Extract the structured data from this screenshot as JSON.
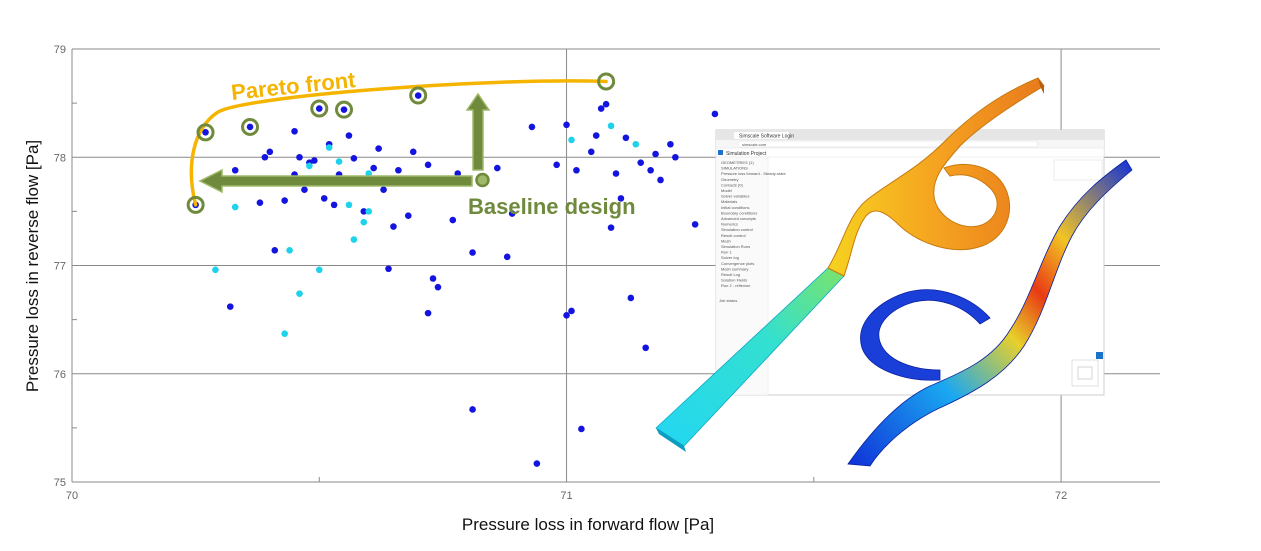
{
  "chart_data": {
    "type": "scatter",
    "xlabel": "Pressure loss in forward flow [Pa]",
    "ylabel": "Pressure loss in reverse flow [Pa]",
    "xlim": [
      70,
      72.2
    ],
    "ylim": [
      75,
      79
    ],
    "x_ticks": [
      "70",
      "71",
      "72"
    ],
    "y_ticks": [
      "75",
      "76",
      "77",
      "78",
      "79"
    ],
    "grid": true,
    "colors": {
      "primary": "#1414e0",
      "secondary": "#1ed2ec",
      "pareto": "#f4b400",
      "baseline": "#6f8a3c"
    },
    "series": [
      {
        "color": "primary",
        "points": [
          [
            70.27,
            78.23
          ],
          [
            70.36,
            78.28
          ],
          [
            70.25,
            77.56
          ],
          [
            70.33,
            77.88
          ],
          [
            70.32,
            76.62
          ],
          [
            70.39,
            78.0
          ],
          [
            70.4,
            78.05
          ],
          [
            70.41,
            77.14
          ],
          [
            70.38,
            77.58
          ],
          [
            70.43,
            77.6
          ],
          [
            70.45,
            78.24
          ],
          [
            70.45,
            77.84
          ],
          [
            70.46,
            78.0
          ],
          [
            70.48,
            77.95
          ],
          [
            70.47,
            77.7
          ],
          [
            70.49,
            77.97
          ],
          [
            70.5,
            78.45
          ],
          [
            70.52,
            78.12
          ],
          [
            70.51,
            77.62
          ],
          [
            70.53,
            77.56
          ],
          [
            70.54,
            77.84
          ],
          [
            70.55,
            78.44
          ],
          [
            70.56,
            78.2
          ],
          [
            70.57,
            77.99
          ],
          [
            70.58,
            77.78
          ],
          [
            70.59,
            77.5
          ],
          [
            70.61,
            77.9
          ],
          [
            70.62,
            78.08
          ],
          [
            70.63,
            77.7
          ],
          [
            70.64,
            76.97
          ],
          [
            70.65,
            77.36
          ],
          [
            70.66,
            77.88
          ],
          [
            70.68,
            77.46
          ],
          [
            70.69,
            78.05
          ],
          [
            70.7,
            78.57
          ],
          [
            70.72,
            77.93
          ],
          [
            70.73,
            77.76
          ],
          [
            70.73,
            76.88
          ],
          [
            70.74,
            76.8
          ],
          [
            70.72,
            76.56
          ],
          [
            70.77,
            77.42
          ],
          [
            70.78,
            77.85
          ],
          [
            70.81,
            77.12
          ],
          [
            70.81,
            75.67
          ],
          [
            70.83,
            77.78
          ],
          [
            70.86,
            77.9
          ],
          [
            70.88,
            77.08
          ],
          [
            70.89,
            77.48
          ],
          [
            70.93,
            78.28
          ],
          [
            70.94,
            75.17
          ],
          [
            70.98,
            77.93
          ],
          [
            71.0,
            76.54
          ],
          [
            71.01,
            76.58
          ],
          [
            71.0,
            78.3
          ],
          [
            71.02,
            77.88
          ],
          [
            71.03,
            75.49
          ],
          [
            71.05,
            78.05
          ],
          [
            71.06,
            78.2
          ],
          [
            71.07,
            78.45
          ],
          [
            71.08,
            78.49
          ],
          [
            71.09,
            77.35
          ],
          [
            71.1,
            77.85
          ],
          [
            71.11,
            77.62
          ],
          [
            71.12,
            78.18
          ],
          [
            71.13,
            76.7
          ],
          [
            71.15,
            77.95
          ],
          [
            71.16,
            76.24
          ],
          [
            71.17,
            77.88
          ],
          [
            71.18,
            78.03
          ],
          [
            71.19,
            77.79
          ],
          [
            71.21,
            78.12
          ],
          [
            71.26,
            77.38
          ],
          [
            71.3,
            78.4
          ],
          [
            71.22,
            78.0
          ]
        ]
      },
      {
        "color": "secondary",
        "points": [
          [
            70.29,
            76.96
          ],
          [
            70.43,
            76.37
          ],
          [
            70.44,
            77.14
          ],
          [
            70.46,
            76.74
          ],
          [
            70.5,
            76.96
          ],
          [
            70.52,
            78.09
          ],
          [
            70.54,
            77.96
          ],
          [
            70.56,
            77.56
          ],
          [
            70.57,
            77.24
          ],
          [
            70.59,
            77.4
          ],
          [
            70.6,
            77.5
          ],
          [
            70.6,
            77.85
          ],
          [
            70.48,
            77.92
          ],
          [
            71.01,
            78.16
          ],
          [
            71.09,
            78.29
          ],
          [
            71.14,
            78.12
          ],
          [
            70.33,
            77.54
          ]
        ]
      }
    ],
    "pareto_points": [
      [
        70.25,
        77.56
      ],
      [
        70.27,
        78.23
      ],
      [
        70.36,
        78.28
      ],
      [
        70.5,
        78.45
      ],
      [
        70.55,
        78.44
      ],
      [
        70.7,
        78.57
      ],
      [
        71.08,
        78.7
      ]
    ],
    "baseline_point": [
      70.83,
      77.79
    ],
    "annotations": [
      {
        "id": "pareto",
        "text": "Pareto front"
      },
      {
        "id": "baseline",
        "text": "Baseline design"
      }
    ]
  },
  "overlay": {
    "app_title": "Simulation Project",
    "tab_title": "Simscale Software Login",
    "address": "simscale.com",
    "tree_items": [
      "GEOMETRIES (1)",
      "SIMULATIONS",
      "Pressure loss forward - Steady-state",
      "Geometry",
      "Contacts (0)",
      "Model",
      "Solver variables",
      "Materials",
      "Initial conditions",
      "Boundary conditions",
      "Advanced concepts",
      "Numerics",
      "Simulation control",
      "Result control",
      "Mesh",
      "Simulation Runs",
      "Run 1",
      "Solver log",
      "Convergence plots",
      "Mesh summary",
      "Result Log",
      "Solution Fields",
      "Run 2 - reflexion"
    ],
    "job_status": "Job status"
  }
}
